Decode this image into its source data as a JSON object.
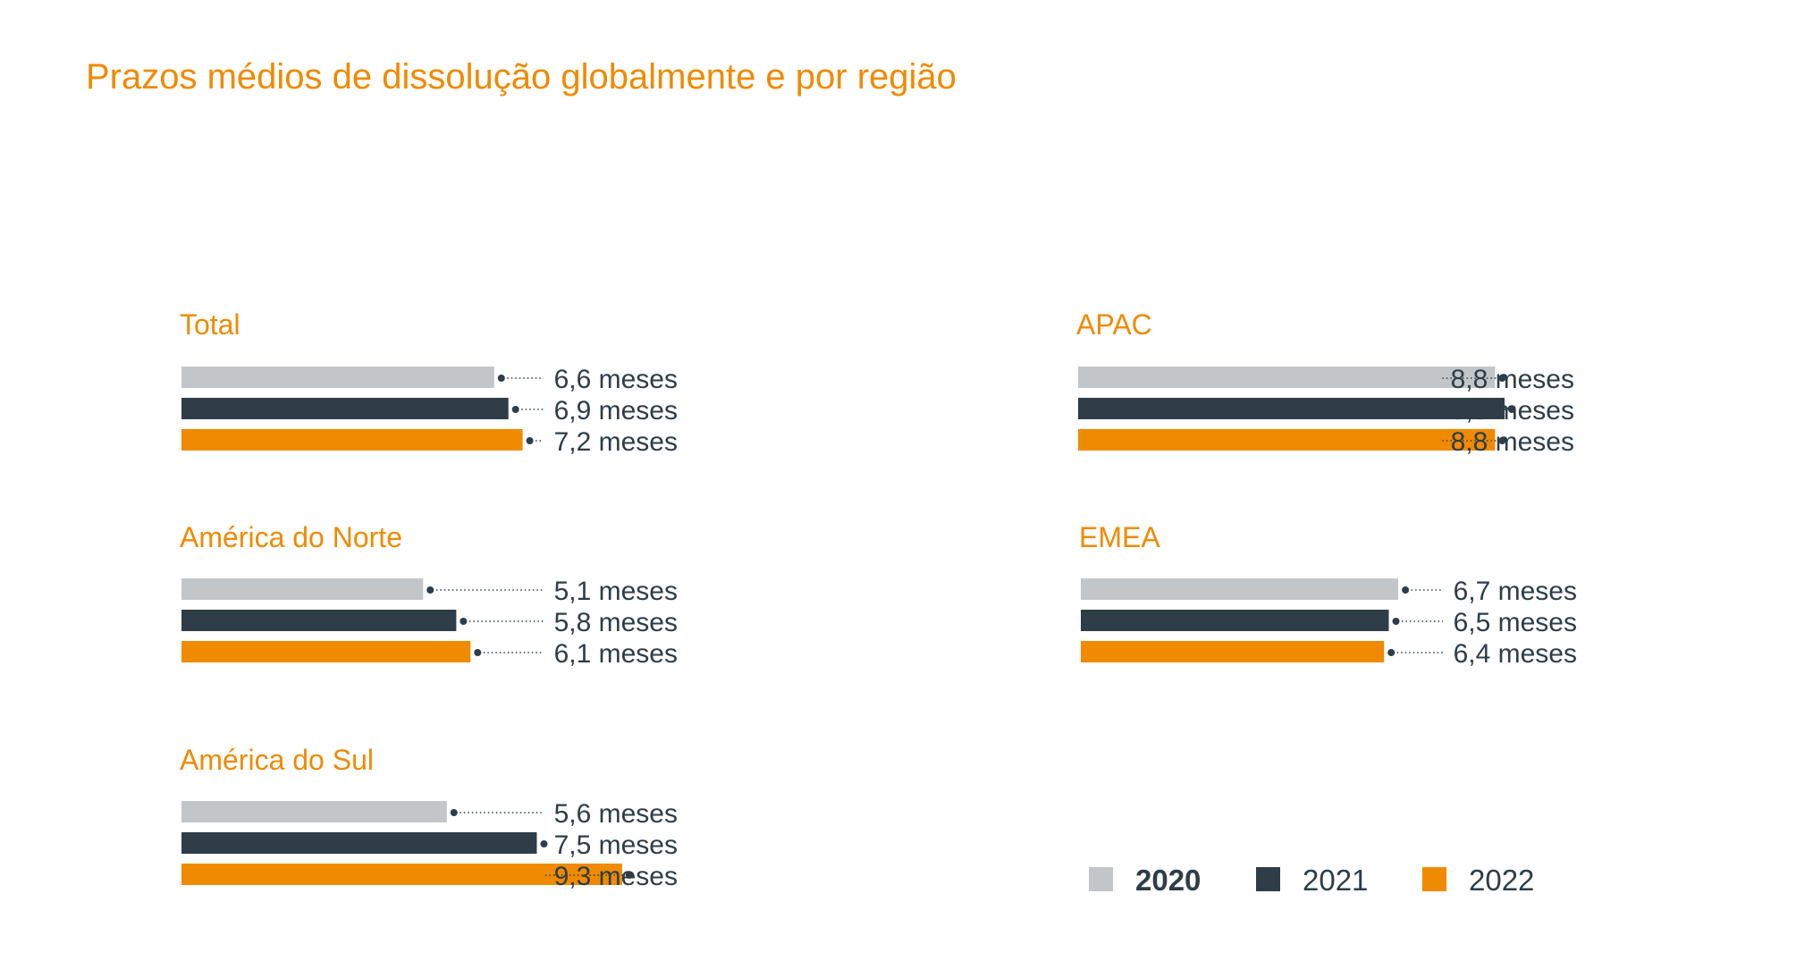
{
  "title": "Prazos médios de dissolução globalmente e por região",
  "colors": {
    "accent": "#f08a00",
    "series_2020": "#c3c6c9",
    "series_2021": "#2e3d47",
    "series_2022": "#f08a00",
    "label_text": "#2e3d47",
    "leader": "#2e3d47"
  },
  "unit_label": "meses",
  "legend": [
    {
      "name": "2020",
      "color": "#c3c6c9"
    },
    {
      "name": "2021",
      "color": "#2e3d47"
    },
    {
      "name": "2022",
      "color": "#f08a00"
    }
  ],
  "chart_data": [
    {
      "type": "bar",
      "orientation": "horizontal",
      "title": "Total",
      "categories": [
        "2020",
        "2021",
        "2022"
      ],
      "values": [
        6.6,
        6.9,
        7.2
      ],
      "data_labels": [
        "6,6 meses",
        "6,9 meses",
        "7,2 meses"
      ]
    },
    {
      "type": "bar",
      "orientation": "horizontal",
      "title": "APAC",
      "categories": [
        "2020",
        "2021",
        "2022"
      ],
      "values": [
        8.8,
        9.0,
        8.8
      ],
      "data_labels": [
        "8,8 meses",
        "9,0 meses",
        "8,8 meses"
      ]
    },
    {
      "type": "bar",
      "orientation": "horizontal",
      "title": "América do Norte",
      "categories": [
        "2020",
        "2021",
        "2022"
      ],
      "values": [
        5.1,
        5.8,
        6.1
      ],
      "data_labels": [
        "5,1 meses",
        "5,8 meses",
        "6,1 meses"
      ]
    },
    {
      "type": "bar",
      "orientation": "horizontal",
      "title": "EMEA",
      "categories": [
        "2020",
        "2021",
        "2022"
      ],
      "values": [
        6.7,
        6.5,
        6.4
      ],
      "data_labels": [
        "6,7 meses",
        "6,5 meses",
        "6,4 meses"
      ]
    },
    {
      "type": "bar",
      "orientation": "horizontal",
      "title": "América do Sul",
      "categories": [
        "2020",
        "2021",
        "2022"
      ],
      "values": [
        5.6,
        7.5,
        9.3
      ],
      "data_labels": [
        "5,6 meses",
        "7,5 meses",
        "9,3 meses"
      ]
    }
  ]
}
